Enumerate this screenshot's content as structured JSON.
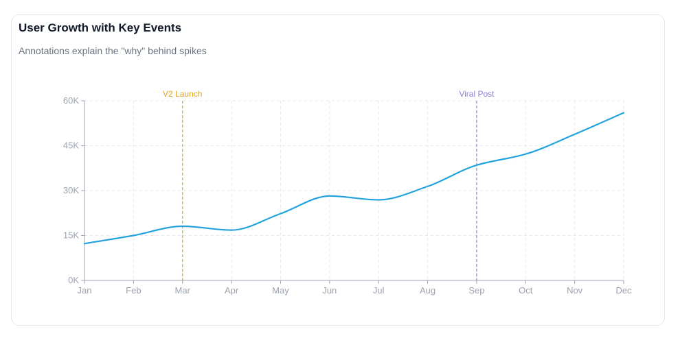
{
  "card": {
    "title": "User Growth with Key Events",
    "subtitle": "Annotations explain the \"why\" behind spikes"
  },
  "colors": {
    "line": "#22a3dd",
    "grid": "#e5e7eb",
    "axis": "#9ca3af",
    "annotation_launch": "#e0a526",
    "annotation_viral": "#8b7fd9"
  },
  "chart_data": {
    "type": "line",
    "title": "User Growth with Key Events",
    "subtitle": "Annotations explain the \"why\" behind spikes",
    "categories": [
      "Jan",
      "Feb",
      "Mar",
      "Apr",
      "May",
      "Jun",
      "Jul",
      "Aug",
      "Sep",
      "Oct",
      "Nov",
      "Dec"
    ],
    "series": [
      {
        "values": [
          12300,
          15000,
          18100,
          16800,
          22300,
          28200,
          26900,
          31400,
          38500,
          42200,
          48800,
          56000
        ]
      }
    ],
    "ylim": [
      0,
      60000
    ],
    "yticks": [
      0,
      15000,
      30000,
      45000,
      60000
    ],
    "ytick_labels": [
      "0K",
      "15K",
      "30K",
      "45K",
      "60K"
    ],
    "grid": true,
    "smooth": true,
    "annotations": [
      {
        "x": "Mar",
        "label": "V2 Launch",
        "color": "#e0a526"
      },
      {
        "x": "Sep",
        "label": "Viral Post",
        "color": "#8b7fd9"
      }
    ]
  }
}
